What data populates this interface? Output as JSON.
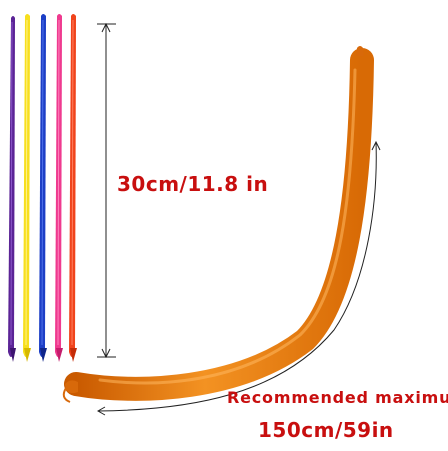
{
  "labels": {
    "short_length": "30cm/11.8 in",
    "recommended": "Recommended  maximum",
    "max_length": "150cm/59in"
  },
  "colors": {
    "label_red": "#c80f0f",
    "balloons": [
      "#5b2496",
      "#f7df1e",
      "#1d3fc6",
      "#ef3a8f",
      "#f0441c"
    ],
    "long_balloon": "#f07c10"
  }
}
